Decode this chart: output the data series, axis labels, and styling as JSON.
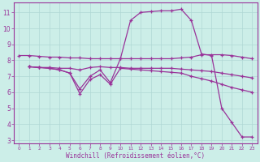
{
  "background_color": "#cceee8",
  "grid_color": "#aadddd",
  "line_color": "#993399",
  "xlabel": "Windchill (Refroidissement éolien,°C)",
  "xlim": [
    -0.5,
    23.5
  ],
  "ylim": [
    2.8,
    11.6
  ],
  "yticks": [
    3,
    4,
    5,
    6,
    7,
    8,
    9,
    10,
    11
  ],
  "xticks": [
    0,
    1,
    2,
    3,
    4,
    5,
    6,
    7,
    8,
    9,
    10,
    11,
    12,
    13,
    14,
    15,
    16,
    17,
    18,
    19,
    20,
    21,
    22,
    23
  ],
  "series": [
    {
      "x": [
        0,
        1,
        2,
        3,
        4,
        5,
        6,
        7,
        8,
        9,
        10,
        11,
        12,
        13,
        14,
        15,
        16,
        17,
        18,
        19,
        20,
        21,
        22,
        23
      ],
      "y": [
        8.3,
        8.3,
        8.25,
        8.2,
        8.2,
        8.15,
        8.15,
        8.1,
        8.1,
        8.1,
        8.1,
        8.1,
        8.1,
        8.1,
        8.1,
        8.1,
        8.15,
        8.2,
        8.35,
        8.35,
        8.35,
        8.3,
        8.2,
        8.1
      ]
    },
    {
      "x": [
        1,
        2,
        3,
        4,
        5,
        6,
        7,
        8,
        9,
        10,
        11,
        12,
        13,
        14,
        15,
        16,
        17,
        18,
        19,
        20,
        21,
        22,
        23
      ],
      "y": [
        7.6,
        7.55,
        7.55,
        7.5,
        7.5,
        7.4,
        7.55,
        7.6,
        7.55,
        7.55,
        7.5,
        7.5,
        7.5,
        7.5,
        7.5,
        7.45,
        7.4,
        7.35,
        7.3,
        7.2,
        7.1,
        7.0,
        6.9
      ]
    },
    {
      "x": [
        1,
        2,
        3,
        4,
        5,
        6,
        7,
        8,
        9,
        10,
        11,
        12,
        13,
        14,
        15,
        16,
        17,
        18,
        19,
        20,
        21,
        22,
        23
      ],
      "y": [
        7.6,
        7.55,
        7.5,
        7.4,
        7.2,
        5.9,
        6.8,
        7.1,
        6.5,
        7.5,
        7.45,
        7.4,
        7.35,
        7.3,
        7.25,
        7.2,
        7.0,
        6.85,
        6.7,
        6.5,
        6.3,
        6.15,
        6.0
      ]
    },
    {
      "x": [
        1,
        2,
        3,
        4,
        5,
        6,
        7,
        8,
        9,
        10,
        11,
        12,
        13,
        14,
        15,
        16,
        17,
        18,
        19,
        20,
        21,
        22,
        23
      ],
      "y": [
        7.6,
        7.55,
        7.5,
        7.4,
        7.2,
        6.2,
        7.0,
        7.4,
        6.6,
        8.1,
        10.5,
        11.0,
        11.05,
        11.1,
        11.1,
        11.2,
        10.5,
        8.4,
        8.3,
        5.0,
        4.1,
        3.2,
        3.2
      ]
    }
  ]
}
